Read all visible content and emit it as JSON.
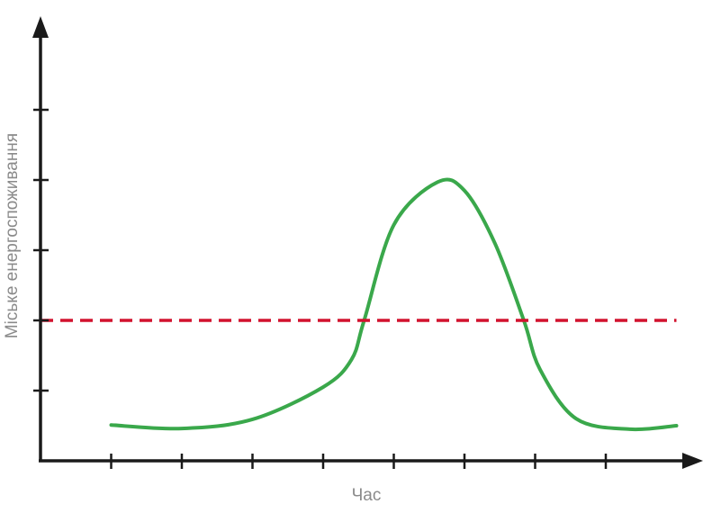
{
  "chart_data": {
    "type": "line",
    "title": "",
    "xlabel": "Час",
    "ylabel": "Міське енергоспоживання",
    "xlim": [
      0,
      9.3
    ],
    "ylim": [
      0,
      6.3
    ],
    "x_ticks": [
      1,
      2,
      3,
      4,
      5,
      6,
      7,
      8
    ],
    "y_ticks": [
      1,
      2,
      3,
      4,
      5
    ],
    "tick_labels_shown": false,
    "grid": false,
    "series": [
      {
        "color": "#3aa84b",
        "style": "solid",
        "x": [
          1,
          2,
          3,
          4,
          4.4,
          4.58,
          5,
          5.62,
          6,
          6.43,
          6.84,
          7.07,
          7.58,
          8.34,
          9.0
        ],
        "y": [
          0.51,
          0.46,
          0.59,
          1.05,
          1.44,
          2.0,
          3.36,
          3.97,
          3.85,
          3.1,
          2.0,
          1.3,
          0.6,
          0.45,
          0.5
        ]
      },
      {
        "color": "#d2122e",
        "style": "dashed",
        "x": [
          0,
          9.0
        ],
        "y": [
          2,
          2
        ]
      }
    ]
  }
}
